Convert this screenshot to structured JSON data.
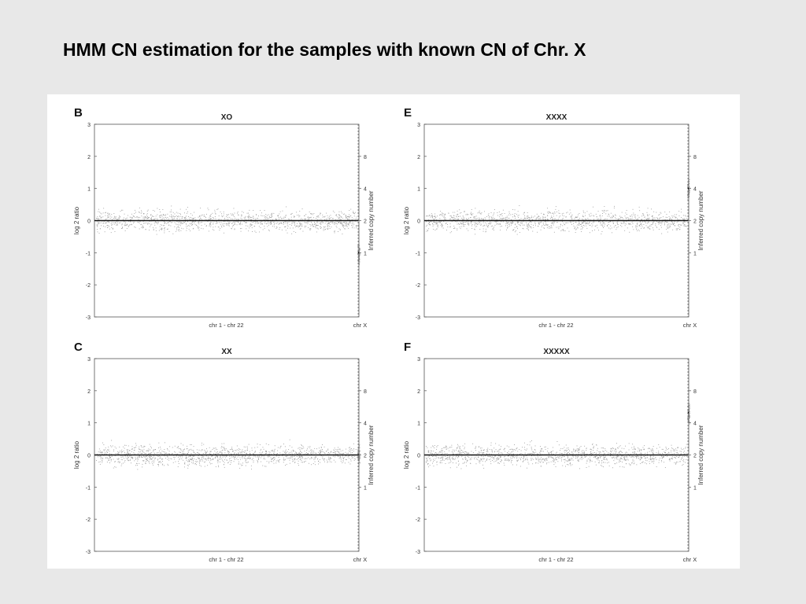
{
  "slide": {
    "title": "HMM CN estimation for the samples with known CN of Chr. X"
  },
  "chart_data": [
    {
      "panel": "B",
      "title": "XO",
      "type": "scatter",
      "ylabel": "log 2 ratio",
      "ylabel_right": "Inferred copy number",
      "ylim": [
        -3,
        3
      ],
      "yticks": [
        "3",
        "2",
        "1",
        "0",
        "-1",
        "-2",
        "-3"
      ],
      "cn_ticks": [
        "8",
        "4",
        "2",
        "1"
      ],
      "x_categories": [
        "chr 1 - chr 22",
        "chr X"
      ],
      "segments": [
        {
          "region": "chr 1 - chr 22",
          "log2": 0,
          "copy_number": 2
        },
        {
          "region": "chr X",
          "log2": -1,
          "copy_number": 1
        }
      ]
    },
    {
      "panel": "E",
      "title": "XXXX",
      "type": "scatter",
      "ylabel": "log 2 ratio",
      "ylabel_right": "Inferred copy number",
      "ylim": [
        -3,
        3
      ],
      "yticks": [
        "3",
        "2",
        "1",
        "0",
        "-1",
        "-2",
        "-3"
      ],
      "cn_ticks": [
        "8",
        "4",
        "2",
        "1"
      ],
      "x_categories": [
        "chr 1 - chr 22",
        "chr X"
      ],
      "segments": [
        {
          "region": "chr 1 - chr 22",
          "log2": 0,
          "copy_number": 2
        },
        {
          "region": "chr X",
          "log2": 1,
          "copy_number": 4
        }
      ]
    },
    {
      "panel": "C",
      "title": "XX",
      "type": "scatter",
      "ylabel": "log 2 ratio",
      "ylabel_right": "Inferred copy number",
      "ylim": [
        -3,
        3
      ],
      "yticks": [
        "3",
        "2",
        "1",
        "0",
        "-1",
        "-2",
        "-3"
      ],
      "cn_ticks": [
        "8",
        "4",
        "2",
        "1"
      ],
      "x_categories": [
        "chr 1 - chr 22",
        "chr X"
      ],
      "segments": [
        {
          "region": "chr 1 - chr 22",
          "log2": 0,
          "copy_number": 2
        },
        {
          "region": "chr X",
          "log2": 0,
          "copy_number": 2
        }
      ]
    },
    {
      "panel": "F",
      "title": "XXXXX",
      "type": "scatter",
      "ylabel": "log 2 ratio",
      "ylabel_right": "Inferred copy number",
      "ylim": [
        -3,
        3
      ],
      "yticks": [
        "3",
        "2",
        "1",
        "0",
        "-1",
        "-2",
        "-3"
      ],
      "cn_ticks": [
        "8",
        "4",
        "2",
        "1"
      ],
      "x_categories": [
        "chr 1 - chr 22",
        "chr X"
      ],
      "segments": [
        {
          "region": "chr 1 - chr 22",
          "log2": 0,
          "copy_number": 2
        },
        {
          "region": "chr X",
          "log2": 1.32,
          "copy_number": 5
        }
      ]
    }
  ]
}
